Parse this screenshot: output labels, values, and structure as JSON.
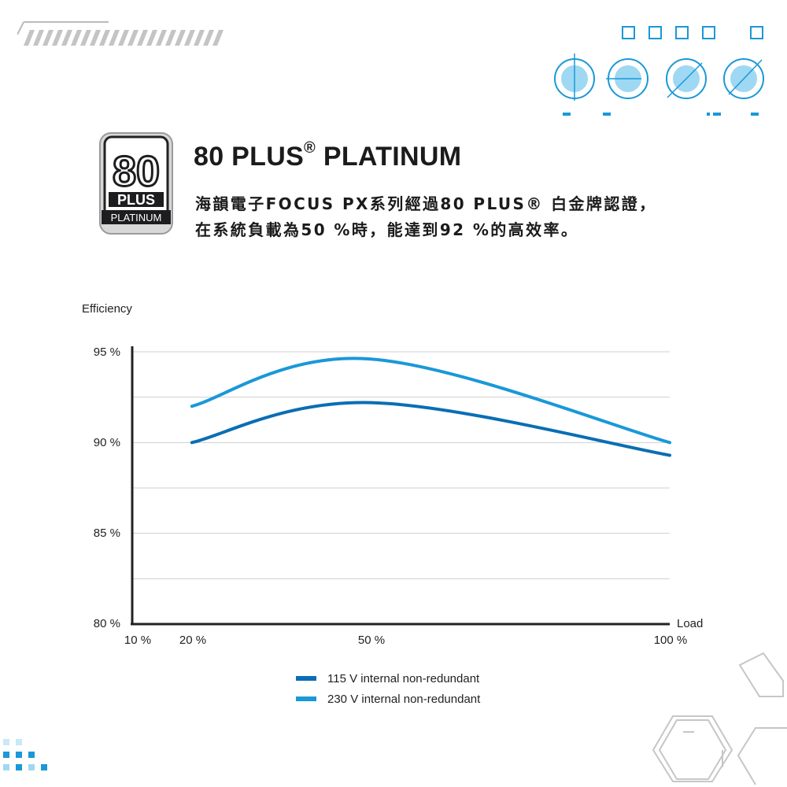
{
  "header": {
    "title_main": "80 PLUS",
    "title_mark": "®",
    "title_tail": " PLATINUM",
    "description_line1": "海韻電子FOCUS PX系列經過80 PLUS® 白金牌認證，",
    "description_line2": "在系統負載為50 %時，能達到92 %的高效率。"
  },
  "badge": {
    "number": "80",
    "plus": "PLUS",
    "tier": "PLATINUM"
  },
  "colors": {
    "series_115v": "#0a6eb4",
    "series_230v": "#1a98d8",
    "grid": "#cfcfcf",
    "axis": "#222222"
  },
  "chart_data": {
    "type": "line",
    "ylabel": "Efficiency",
    "xlabel": "Load",
    "x_ticks": [
      "10 %",
      "20 %",
      "50 %",
      "100 %"
    ],
    "y_ticks": [
      "80 %",
      "85 %",
      "90 %",
      "95 %"
    ],
    "xlim": [
      10,
      100
    ],
    "ylim": [
      80,
      95
    ],
    "grid": "horizontal every 2.5 %",
    "series": [
      {
        "name": "115 V internal non-redundant",
        "color": "#0a6eb4",
        "x": [
          20,
          50,
          100
        ],
        "y": [
          90.0,
          92.2,
          89.3
        ]
      },
      {
        "name": "230 V internal non-redundant",
        "color": "#1a98d8",
        "x": [
          20,
          50,
          100
        ],
        "y": [
          92.0,
          94.6,
          90.0
        ]
      }
    ]
  }
}
